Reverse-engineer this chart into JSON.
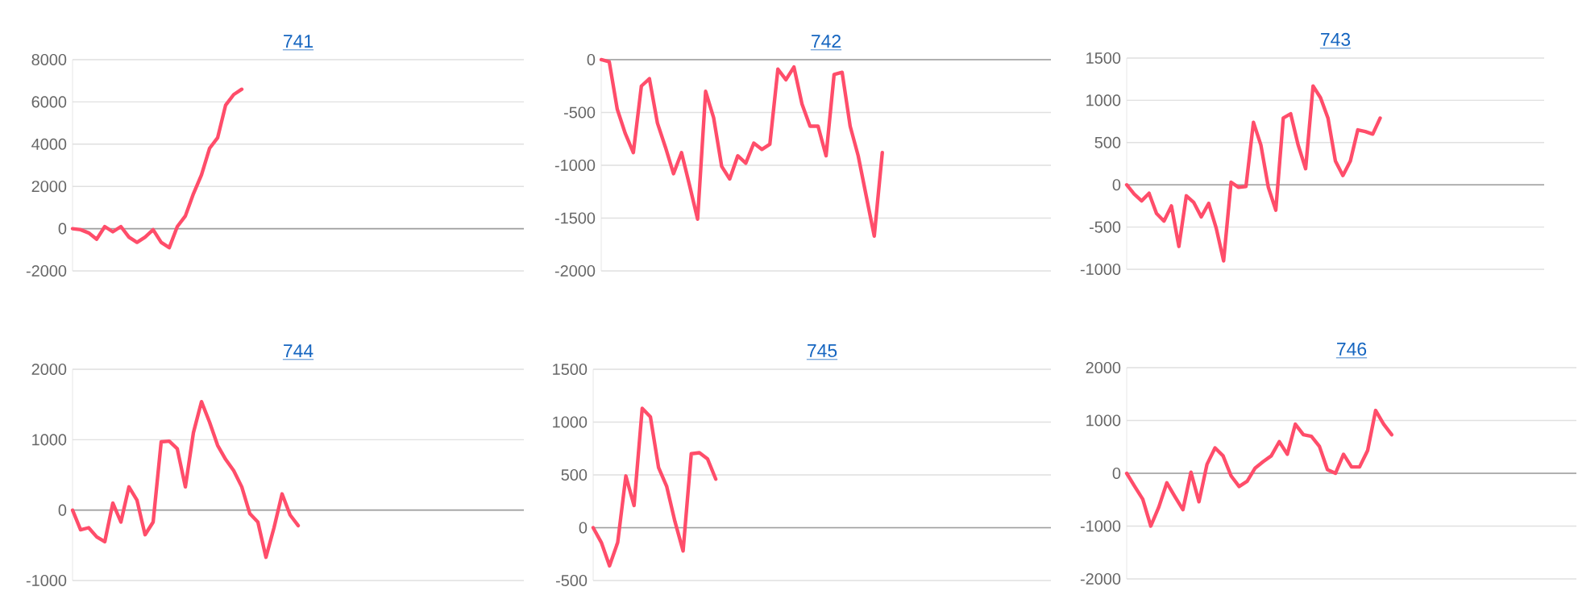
{
  "chart_data": [
    {
      "type": "line",
      "title": "741",
      "categories": [
        null,
        null,
        null,
        null,
        null,
        null,
        null,
        null,
        null,
        null,
        null,
        null,
        null,
        null,
        null,
        null,
        null,
        null,
        null,
        null,
        null,
        null,
        null,
        null,
        null,
        null,
        null,
        null,
        null,
        null,
        null,
        null,
        null,
        null,
        null,
        null,
        null,
        null,
        null,
        null,
        null,
        null,
        null,
        null,
        null,
        null,
        null,
        null,
        null,
        null,
        null,
        null,
        null,
        null,
        null,
        null,
        null
      ],
      "series": [
        {
          "color": "#ff4d6a",
          "values": [
            0,
            -50,
            -200,
            -500,
            100,
            -150,
            100,
            -400,
            -650,
            -400,
            -50,
            -650,
            -900,
            100,
            600,
            1650,
            2550,
            3800,
            4300,
            5850,
            6350,
            6600,
            null,
            null,
            null,
            null,
            null,
            null,
            null,
            null,
            null,
            null,
            null,
            null,
            null,
            null,
            null,
            null,
            null,
            null,
            null,
            null,
            null,
            null,
            null,
            null,
            null,
            null,
            null,
            null,
            null,
            null,
            null,
            null,
            null,
            null,
            null
          ]
        }
      ],
      "ylim": [
        -2000,
        8000
      ],
      "yticks": [
        -2000,
        0,
        2000,
        4000,
        6000,
        8000
      ],
      "grid": "y",
      "ref_lines": [
        {
          "axis": "y",
          "value": 0,
          "color": "#9e9e9e"
        }
      ],
      "line_style": "solid"
    },
    {
      "type": "line",
      "title": "742",
      "categories": [
        null,
        null,
        null,
        null,
        null,
        null,
        null,
        null,
        null,
        null,
        null,
        null,
        null,
        null,
        null,
        null,
        null,
        null,
        null,
        null,
        null,
        null,
        null,
        null,
        null,
        null,
        null,
        null,
        null,
        null,
        null,
        null,
        null,
        null,
        null,
        null,
        null,
        null,
        null,
        null,
        null,
        null,
        null,
        null,
        null,
        null,
        null,
        null,
        null,
        null,
        null,
        null,
        null,
        null,
        null,
        null,
        null
      ],
      "series": [
        {
          "color": "#ff4d6a",
          "values": [
            0,
            -20,
            -470,
            -700,
            -880,
            -250,
            -180,
            -600,
            -830,
            -1080,
            -880,
            -1190,
            -1510,
            -300,
            -550,
            -1010,
            -1130,
            -910,
            -980,
            -790,
            -850,
            -800,
            -90,
            -190,
            -70,
            -420,
            -630,
            -630,
            -910,
            -140,
            -120,
            -630,
            -910,
            -1290,
            -1670,
            -880,
            null,
            null,
            null,
            null,
            null,
            null,
            null,
            null,
            null,
            null,
            null,
            null,
            null,
            null,
            null,
            null,
            null,
            null,
            null,
            null,
            null
          ]
        }
      ],
      "ylim": [
        -2000,
        0
      ],
      "yticks": [
        -2000,
        -1500,
        -1000,
        -500,
        0
      ],
      "grid": "y",
      "ref_lines": [
        {
          "axis": "y",
          "value": 0,
          "color": "#9e9e9e"
        }
      ],
      "line_style": "solid"
    },
    {
      "type": "line",
      "title": "743",
      "categories": [
        null,
        null,
        null,
        null,
        null,
        null,
        null,
        null,
        null,
        null,
        null,
        null,
        null,
        null,
        null,
        null,
        null,
        null,
        null,
        null,
        null,
        null,
        null,
        null,
        null,
        null,
        null,
        null,
        null,
        null,
        null,
        null,
        null,
        null,
        null,
        null,
        null,
        null,
        null,
        null,
        null,
        null,
        null,
        null,
        null,
        null,
        null,
        null,
        null,
        null,
        null,
        null,
        null,
        null,
        null,
        null,
        null
      ],
      "series": [
        {
          "color": "#ff4d6a",
          "values": [
            0,
            -110,
            -190,
            -100,
            -340,
            -430,
            -250,
            -730,
            -130,
            -210,
            -380,
            -220,
            -510,
            -900,
            30,
            -30,
            -20,
            740,
            470,
            -30,
            -300,
            790,
            840,
            470,
            190,
            1170,
            1030,
            790,
            280,
            110,
            280,
            650,
            630,
            600,
            790,
            null,
            null,
            null,
            null,
            null,
            null,
            null,
            null,
            null,
            null,
            null,
            null,
            null,
            null,
            null,
            null,
            null,
            null,
            null,
            null,
            null,
            null
          ]
        }
      ],
      "ylim": [
        -1000,
        1500
      ],
      "yticks": [
        -1000,
        -500,
        0,
        500,
        1000,
        1500
      ],
      "grid": "y",
      "ref_lines": [
        {
          "axis": "y",
          "value": 0,
          "color": "#9e9e9e"
        }
      ],
      "line_style": "solid"
    },
    {
      "type": "line",
      "title": "744",
      "categories": [
        null,
        null,
        null,
        null,
        null,
        null,
        null,
        null,
        null,
        null,
        null,
        null,
        null,
        null,
        null,
        null,
        null,
        null,
        null,
        null,
        null,
        null,
        null,
        null,
        null,
        null,
        null,
        null,
        null,
        null,
        null,
        null,
        null,
        null,
        null,
        null,
        null,
        null,
        null,
        null,
        null,
        null,
        null,
        null,
        null,
        null,
        null,
        null,
        null,
        null,
        null,
        null,
        null,
        null,
        null,
        null,
        null
      ],
      "series": [
        {
          "color": "#ff4d6a",
          "values": [
            0,
            -280,
            -250,
            -380,
            -450,
            100,
            -170,
            330,
            140,
            -350,
            -170,
            970,
            980,
            870,
            330,
            1100,
            1540,
            1250,
            920,
            720,
            560,
            330,
            -50,
            -170,
            -670,
            -250,
            230,
            -70,
            -220,
            null,
            null,
            null,
            null,
            null,
            null,
            null,
            null,
            null,
            null,
            null,
            null,
            null,
            null,
            null,
            null,
            null,
            null,
            null,
            null,
            null,
            null,
            null,
            null,
            null,
            null,
            null,
            null
          ]
        }
      ],
      "ylim": [
        -1000,
        2000
      ],
      "yticks": [
        -1000,
        0,
        1000,
        2000
      ],
      "grid": "y",
      "ref_lines": [
        {
          "axis": "y",
          "value": 0,
          "color": "#9e9e9e"
        }
      ],
      "line_style": "solid"
    },
    {
      "type": "line",
      "title": "745",
      "categories": [
        null,
        null,
        null,
        null,
        null,
        null,
        null,
        null,
        null,
        null,
        null,
        null,
        null,
        null,
        null,
        null,
        null,
        null,
        null,
        null,
        null,
        null,
        null,
        null,
        null,
        null,
        null,
        null,
        null,
        null,
        null,
        null,
        null,
        null,
        null,
        null,
        null,
        null,
        null,
        null,
        null,
        null,
        null,
        null,
        null,
        null,
        null,
        null,
        null,
        null,
        null,
        null,
        null,
        null,
        null,
        null,
        null
      ],
      "series": [
        {
          "color": "#ff4d6a",
          "values": [
            0,
            -140,
            -360,
            -140,
            490,
            210,
            1130,
            1050,
            570,
            390,
            60,
            -220,
            700,
            710,
            650,
            460,
            null,
            null,
            null,
            null,
            null,
            null,
            null,
            null,
            null,
            null,
            null,
            null,
            null,
            null,
            null,
            null,
            null,
            null,
            null,
            null,
            null,
            null,
            null,
            null,
            null,
            null,
            null,
            null,
            null,
            null,
            null,
            null,
            null,
            null,
            null,
            null,
            null,
            null,
            null,
            null,
            null
          ]
        }
      ],
      "ylim": [
        -500,
        1500
      ],
      "yticks": [
        -500,
        0,
        500,
        1000,
        1500
      ],
      "grid": "y",
      "ref_lines": [
        {
          "axis": "y",
          "value": 0,
          "color": "#9e9e9e"
        }
      ],
      "line_style": "solid"
    },
    {
      "type": "line",
      "title": "746",
      "categories": [
        null,
        null,
        null,
        null,
        null,
        null,
        null,
        null,
        null,
        null,
        null,
        null,
        null,
        null,
        null,
        null,
        null,
        null,
        null,
        null,
        null,
        null,
        null,
        null,
        null,
        null,
        null,
        null,
        null,
        null,
        null,
        null,
        null,
        null,
        null,
        null,
        null,
        null,
        null,
        null,
        null,
        null,
        null,
        null,
        null,
        null,
        null,
        null,
        null,
        null,
        null,
        null,
        null,
        null,
        null,
        null,
        null
      ],
      "series": [
        {
          "color": "#ff4d6a",
          "values": [
            0,
            -250,
            -490,
            -1000,
            -640,
            -180,
            -440,
            -690,
            20,
            -540,
            170,
            480,
            330,
            -50,
            -250,
            -150,
            100,
            220,
            330,
            600,
            360,
            930,
            730,
            700,
            510,
            70,
            0,
            360,
            120,
            120,
            430,
            1190,
            930,
            730,
            null,
            null,
            null,
            null,
            null,
            null,
            null,
            null,
            null,
            null,
            null,
            null,
            null,
            null,
            null,
            null,
            null,
            null,
            null,
            null,
            null,
            null,
            null
          ]
        }
      ],
      "ylim": [
        -2000,
        2000
      ],
      "yticks": [
        -2000,
        -1000,
        0,
        1000,
        2000
      ],
      "grid": "y",
      "ref_lines": [
        {
          "axis": "y",
          "value": 0,
          "color": "#9e9e9e"
        }
      ],
      "line_style": "solid"
    }
  ]
}
